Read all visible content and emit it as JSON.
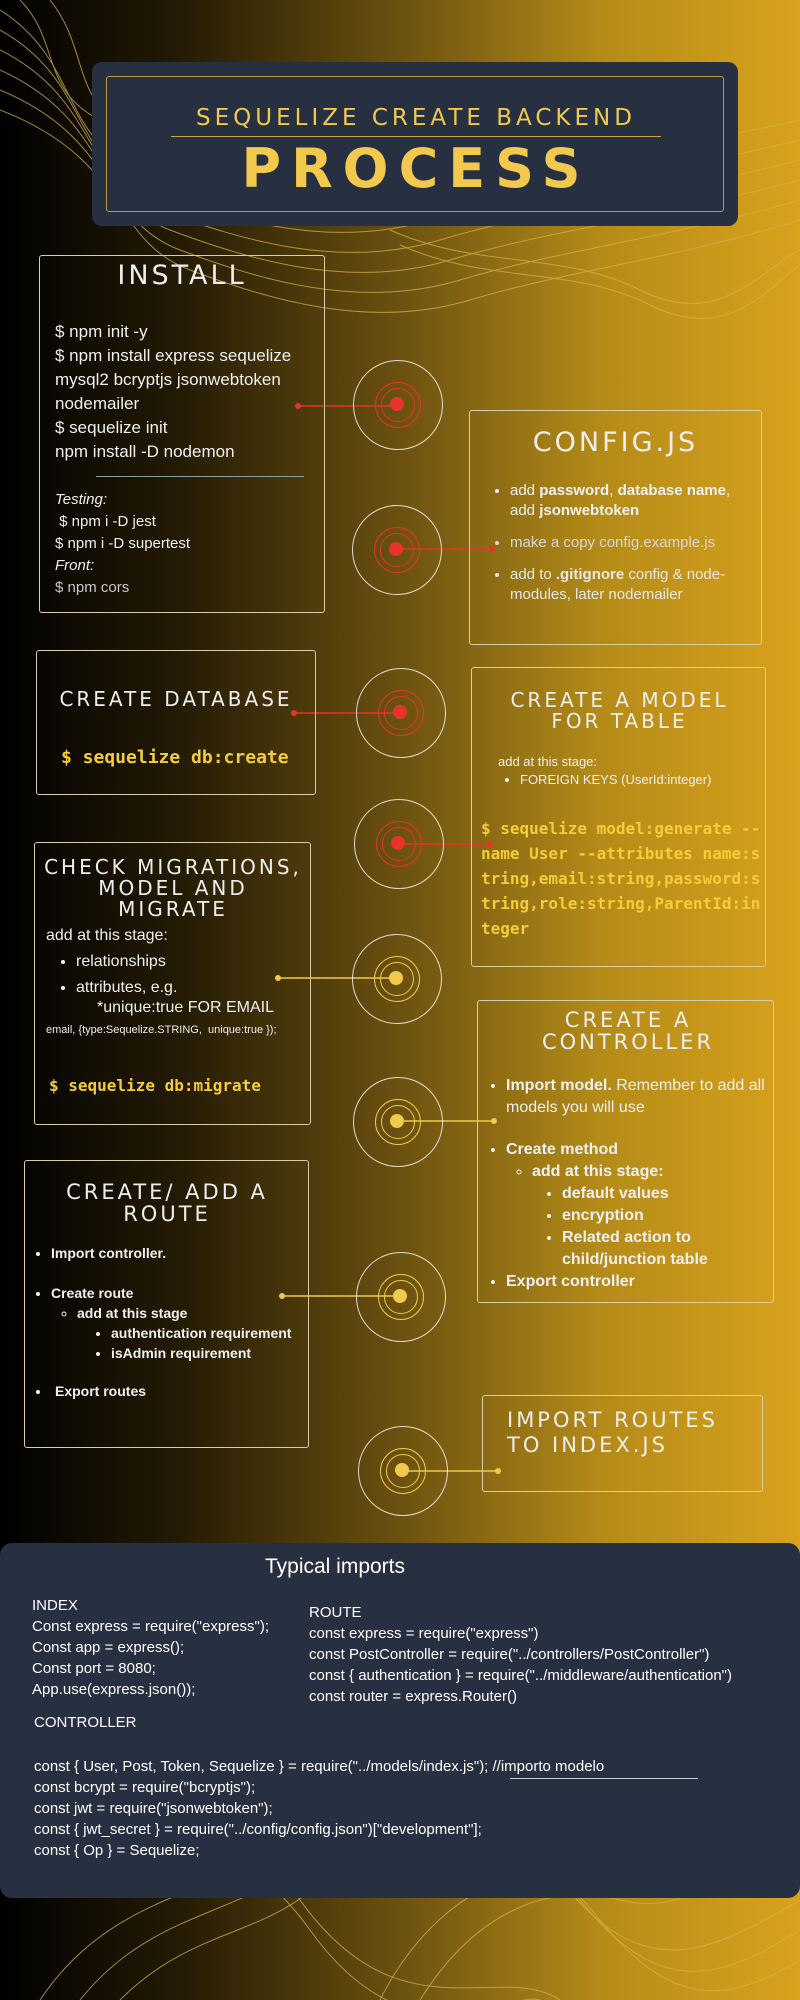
{
  "header": {
    "subtitle": "Sequelize create backend",
    "title": "PROCESS"
  },
  "install": {
    "title": "Install",
    "lines": [
      "$ npm init -y",
      "$ npm install express sequelize",
      "mysql2 bcryptjs jsonwebtoken",
      "nodemailer",
      "$ sequelize init",
      "npm install -D nodemon"
    ],
    "testing_label": "Testing:",
    "testing_lines": [
      " $ npm i -D jest",
      "$ npm i -D supertest"
    ],
    "front_label": "Front:",
    "front_line": "$ npm cors"
  },
  "config": {
    "title": "config.js",
    "b1_a": "add ",
    "b1_b": "password",
    "b1_c": ", ",
    "b1_d": "database name",
    "b1_e": ", add ",
    "b1_f": "jsonwebtoken",
    "b2": "make a copy config.example.js",
    "b3_a": "add to ",
    "b3_b": ".gitignore",
    "b3_c": "  config & node-modules, later nodemailer"
  },
  "create_db": {
    "title": "Create database",
    "command": "$ sequelize db:create"
  },
  "model": {
    "title": "Create a model for table",
    "note": "add at this stage:",
    "bullet": "FOREIGN KEYS (UserId:integer)",
    "command": "$ sequelize model:generate --name User --attributes name:string,email:string,password:string,role:string,ParentId:integer"
  },
  "migrations": {
    "title": "Check migrations, model and migrate",
    "note": "add at this stage:",
    "b1": "relationships",
    "b2": "attributes, e.g.",
    "b2_sub": "*unique:true FOR EMAIL",
    "example": "email, {type:Sequelize.STRING,  unique:true });",
    "command": "$ sequelize db:migrate"
  },
  "controller": {
    "title": "Create a controller",
    "b1_a": "Import model.",
    "b1_b": " Remember to add all models you will use",
    "b2": "Create method",
    "b2_sub": "add at this stage:",
    "b2_items": [
      "default values",
      "encryption",
      "Related action to child/junction table"
    ],
    "b3": "Export controller"
  },
  "route": {
    "title": "Create/ add a route",
    "b1": "Import controller.",
    "b2": "Create route",
    "b2_sub": "add at this stage",
    "b2_items": [
      "authentication requirement",
      "isAdmin requirement"
    ],
    "b3": "Export routes"
  },
  "import_routes": {
    "title": "Import routes to index.js"
  },
  "typical": {
    "title": "Typical imports",
    "index_label": "INDEX",
    "index_lines": [
      "Const express = require(\"express\");",
      "Const app = express();",
      "Const port = 8080;",
      "App.use(express.json());"
    ],
    "route_label": "ROUTE",
    "route_lines": [
      "const express = require(\"express\")",
      "const PostController = require(\"../controllers/PostController\")",
      "const { authentication } = require(\"../middleware/authentication\")",
      "const router = express.Router()"
    ],
    "controller_label": "CONTROLLER",
    "controller_lines": [
      "const { User, Post, Token, Sequelize } = require(\"../models/index.js\"); //importo modelo",
      "const bcrypt = require(\"bcryptjs\");",
      "const jwt = require(\"jsonwebtoken\");",
      "const { jwt_secret } = require(\"../config/config.json\")[\"development\"];",
      "const { Op } = Sequelize;"
    ]
  },
  "colors": {
    "accent_yellow": "#f2c94c",
    "accent_red": "#e8332b",
    "panel": "#263040"
  }
}
